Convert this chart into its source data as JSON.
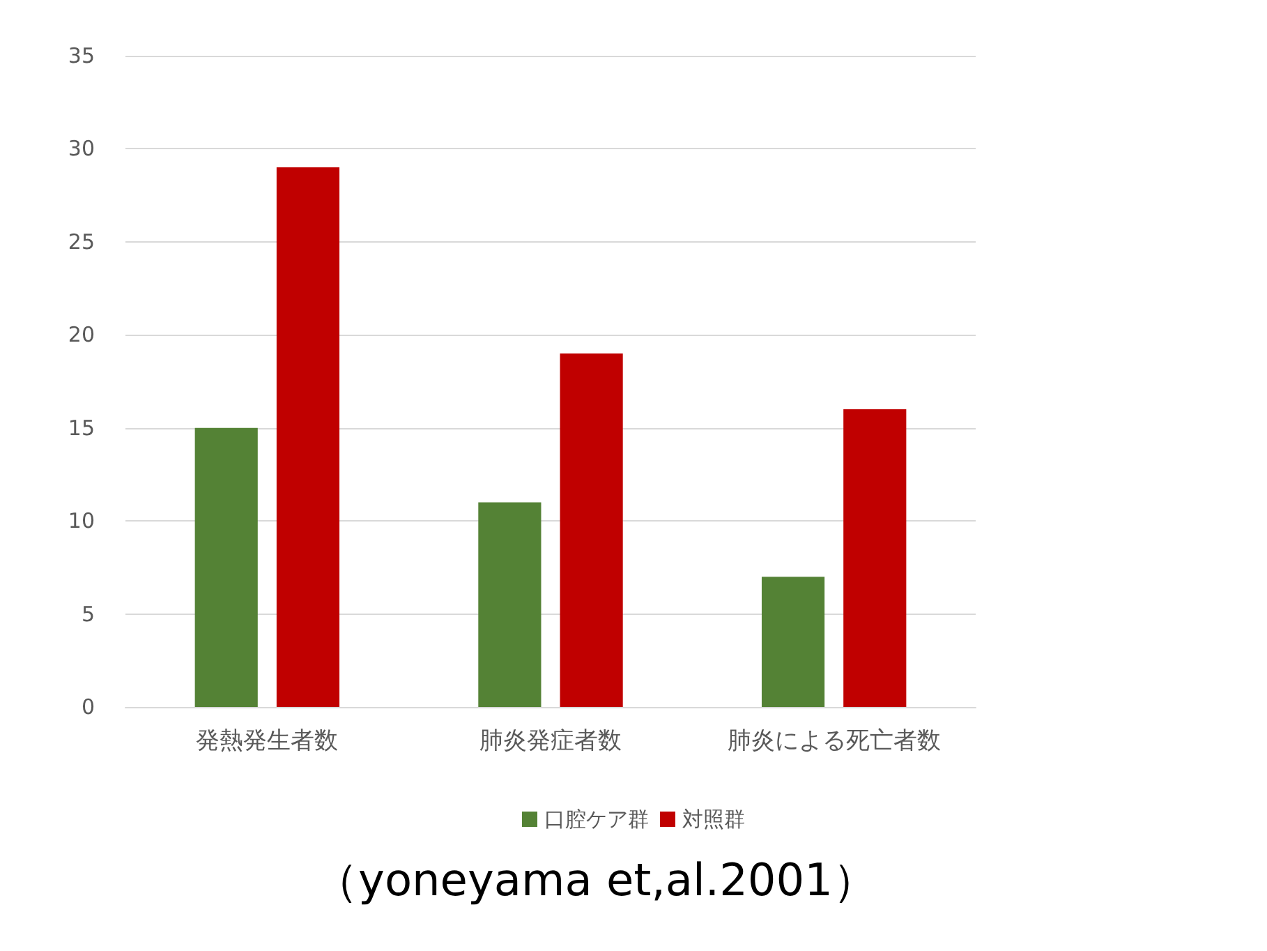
{
  "chart_data": {
    "type": "bar",
    "categories": [
      "発熱発生者数",
      "肺炎発症者数",
      "肺炎による死亡者数"
    ],
    "series": [
      {
        "name": "口腔ケア群",
        "color": "#548235",
        "values": [
          15,
          11,
          7
        ]
      },
      {
        "name": "対照群",
        "color": "#c00000",
        "values": [
          29,
          19,
          16
        ]
      }
    ],
    "ylim": [
      0,
      35
    ],
    "yticks": [
      0,
      5,
      10,
      15,
      20,
      25,
      30,
      35
    ],
    "grid": "y",
    "legend": "bottom",
    "annotations": [
      "（yoneyama et,al.2001）"
    ]
  }
}
